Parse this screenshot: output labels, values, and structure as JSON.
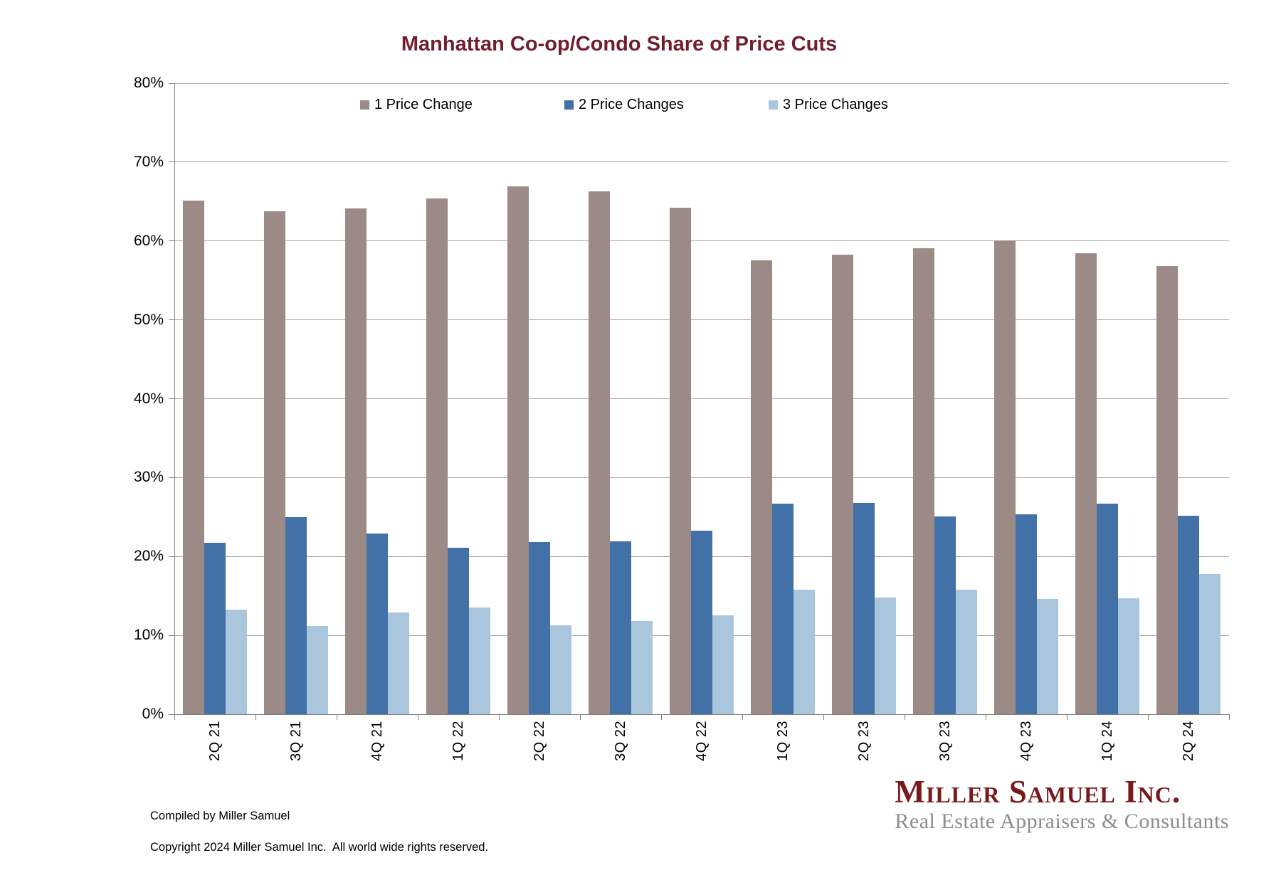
{
  "title": "Manhattan Co-op/Condo Share of Price Cuts",
  "colors": {
    "title_maroon": "#721e2c",
    "logo_maroon": "#7a191d",
    "tagline_gray": "#8c8c8c",
    "gridline": "#a6a6a6",
    "axis": "#7f7f7f",
    "series_1": "#9c8a87",
    "series_2": "#4271a7",
    "series_3": "#a9c6dd"
  },
  "chart_data": {
    "type": "bar",
    "title": "Manhattan Co-op/Condo Share of Price Cuts",
    "categories": [
      "2Q 21",
      "3Q 21",
      "4Q 21",
      "1Q 22",
      "2Q 22",
      "3Q 22",
      "4Q 22",
      "1Q 23",
      "2Q 23",
      "3Q 23",
      "4Q 23",
      "1Q 24",
      "2Q 24"
    ],
    "series": [
      {
        "name": "1 Price Change",
        "color": "#9c8a87",
        "values": [
          65.1,
          63.8,
          64.1,
          65.4,
          66.9,
          66.3,
          64.2,
          57.5,
          58.3,
          59.1,
          60.1,
          58.4,
          56.8
        ]
      },
      {
        "name": "2 Price Changes",
        "color": "#4271a7",
        "values": [
          21.7,
          25.0,
          22.9,
          21.1,
          21.8,
          21.9,
          23.3,
          26.7,
          26.8,
          25.1,
          25.3,
          26.7,
          25.2
        ]
      },
      {
        "name": "3 Price Changes",
        "color": "#a9c6dd",
        "values": [
          13.3,
          11.2,
          12.9,
          13.5,
          11.3,
          11.8,
          12.5,
          15.8,
          14.8,
          15.8,
          14.6,
          14.7,
          17.8
        ]
      }
    ],
    "xlabel": "",
    "ylabel": "",
    "ylim": [
      0,
      80
    ],
    "ytick_step": 10,
    "ytick_suffix": "%",
    "grid": true,
    "legend_position": "top-inside"
  },
  "footer": {
    "line1": "Compiled by Miller Samuel",
    "line2": "Copyright 2024 Miller Samuel Inc.  All world wide rights reserved."
  },
  "logo": {
    "name": "Miller Samuel Inc.",
    "tagline": "Real Estate Appraisers & Consultants"
  }
}
